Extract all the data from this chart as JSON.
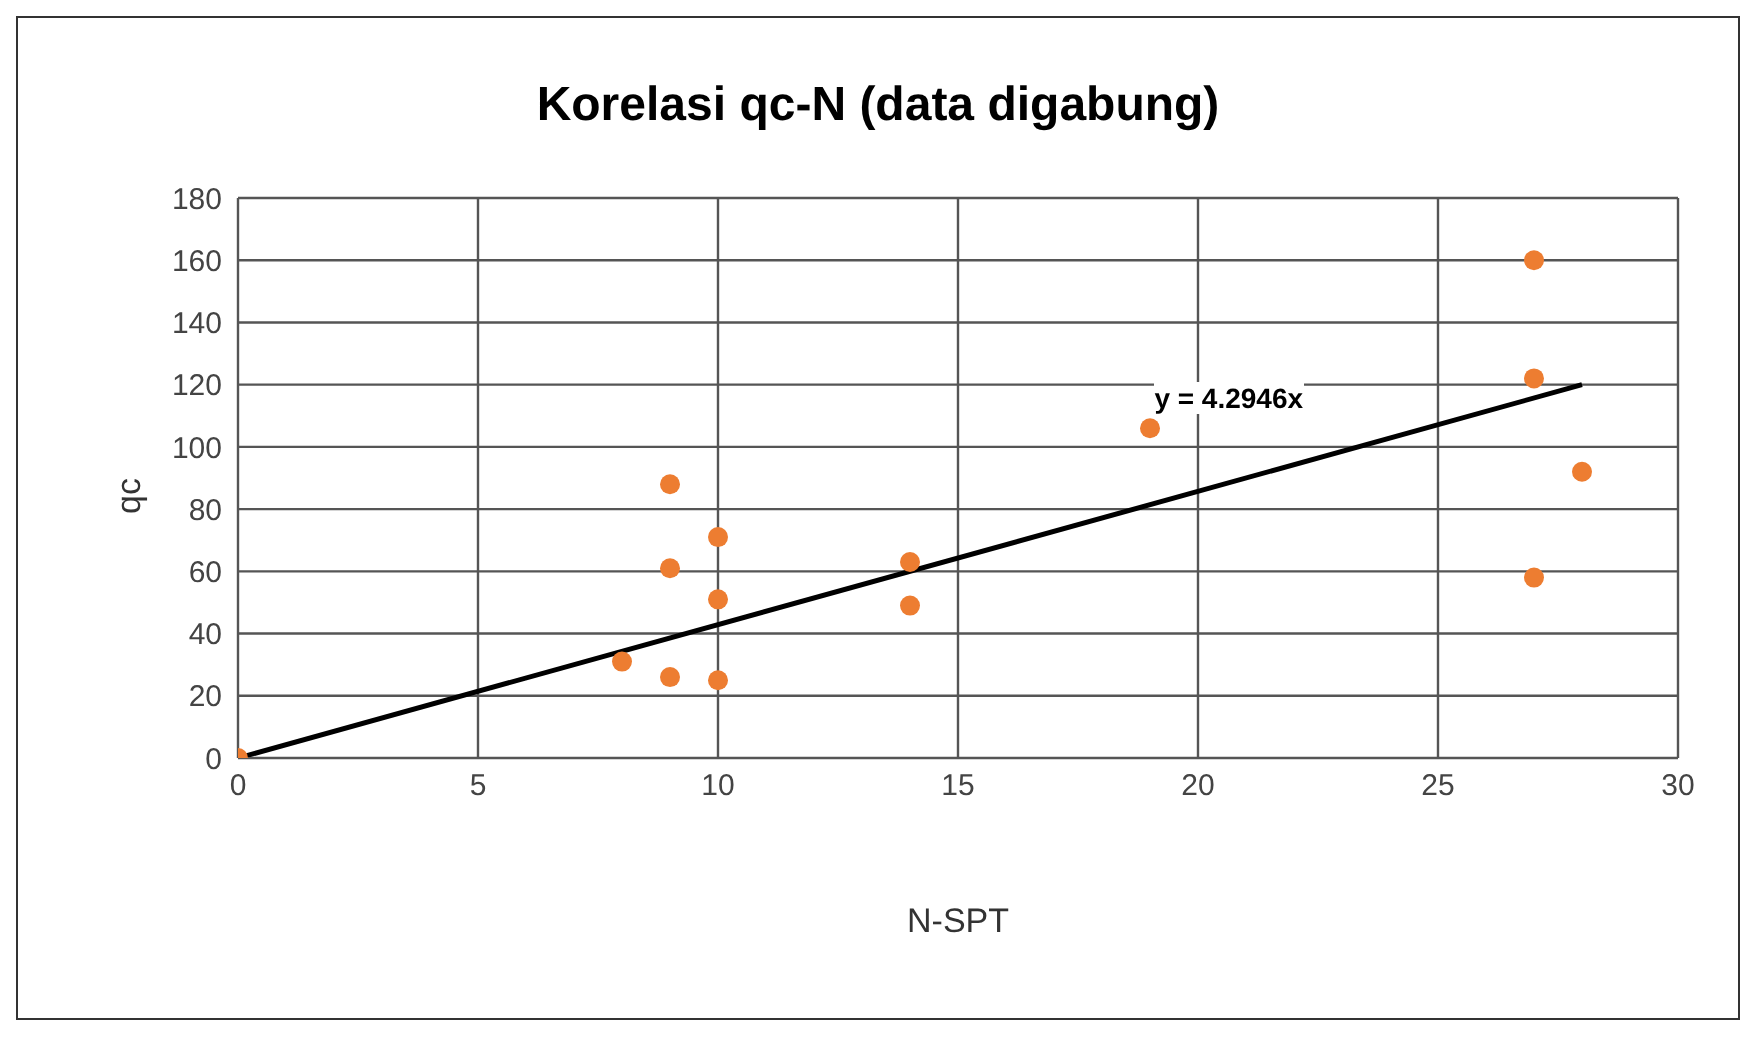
{
  "chart_data": {
    "type": "scatter",
    "title": "Korelasi qc-N (data digabung)",
    "xlabel": "N-SPT",
    "ylabel": "qc",
    "xlim": [
      0,
      30
    ],
    "xticks": [
      0,
      5,
      10,
      15,
      20,
      25,
      30
    ],
    "ylim": [
      0,
      180
    ],
    "yticks": [
      0,
      20,
      40,
      60,
      80,
      100,
      120,
      140,
      160,
      180
    ],
    "grid": true,
    "annotations": [
      "y = 4.2946x"
    ],
    "series": [
      {
        "marker": "circle",
        "color": "#ed7d31",
        "x": [
          0,
          8,
          9,
          9,
          9,
          10,
          10,
          10,
          14,
          14,
          19,
          27,
          27,
          27,
          28
        ],
        "values": [
          0,
          31,
          88,
          61,
          26,
          71,
          51,
          25,
          63,
          49,
          106,
          160,
          122,
          58,
          92
        ]
      },
      {
        "type": "line",
        "marker": "none",
        "color": "#000000",
        "x": [
          0,
          28
        ],
        "values": [
          0,
          120
        ]
      }
    ]
  }
}
